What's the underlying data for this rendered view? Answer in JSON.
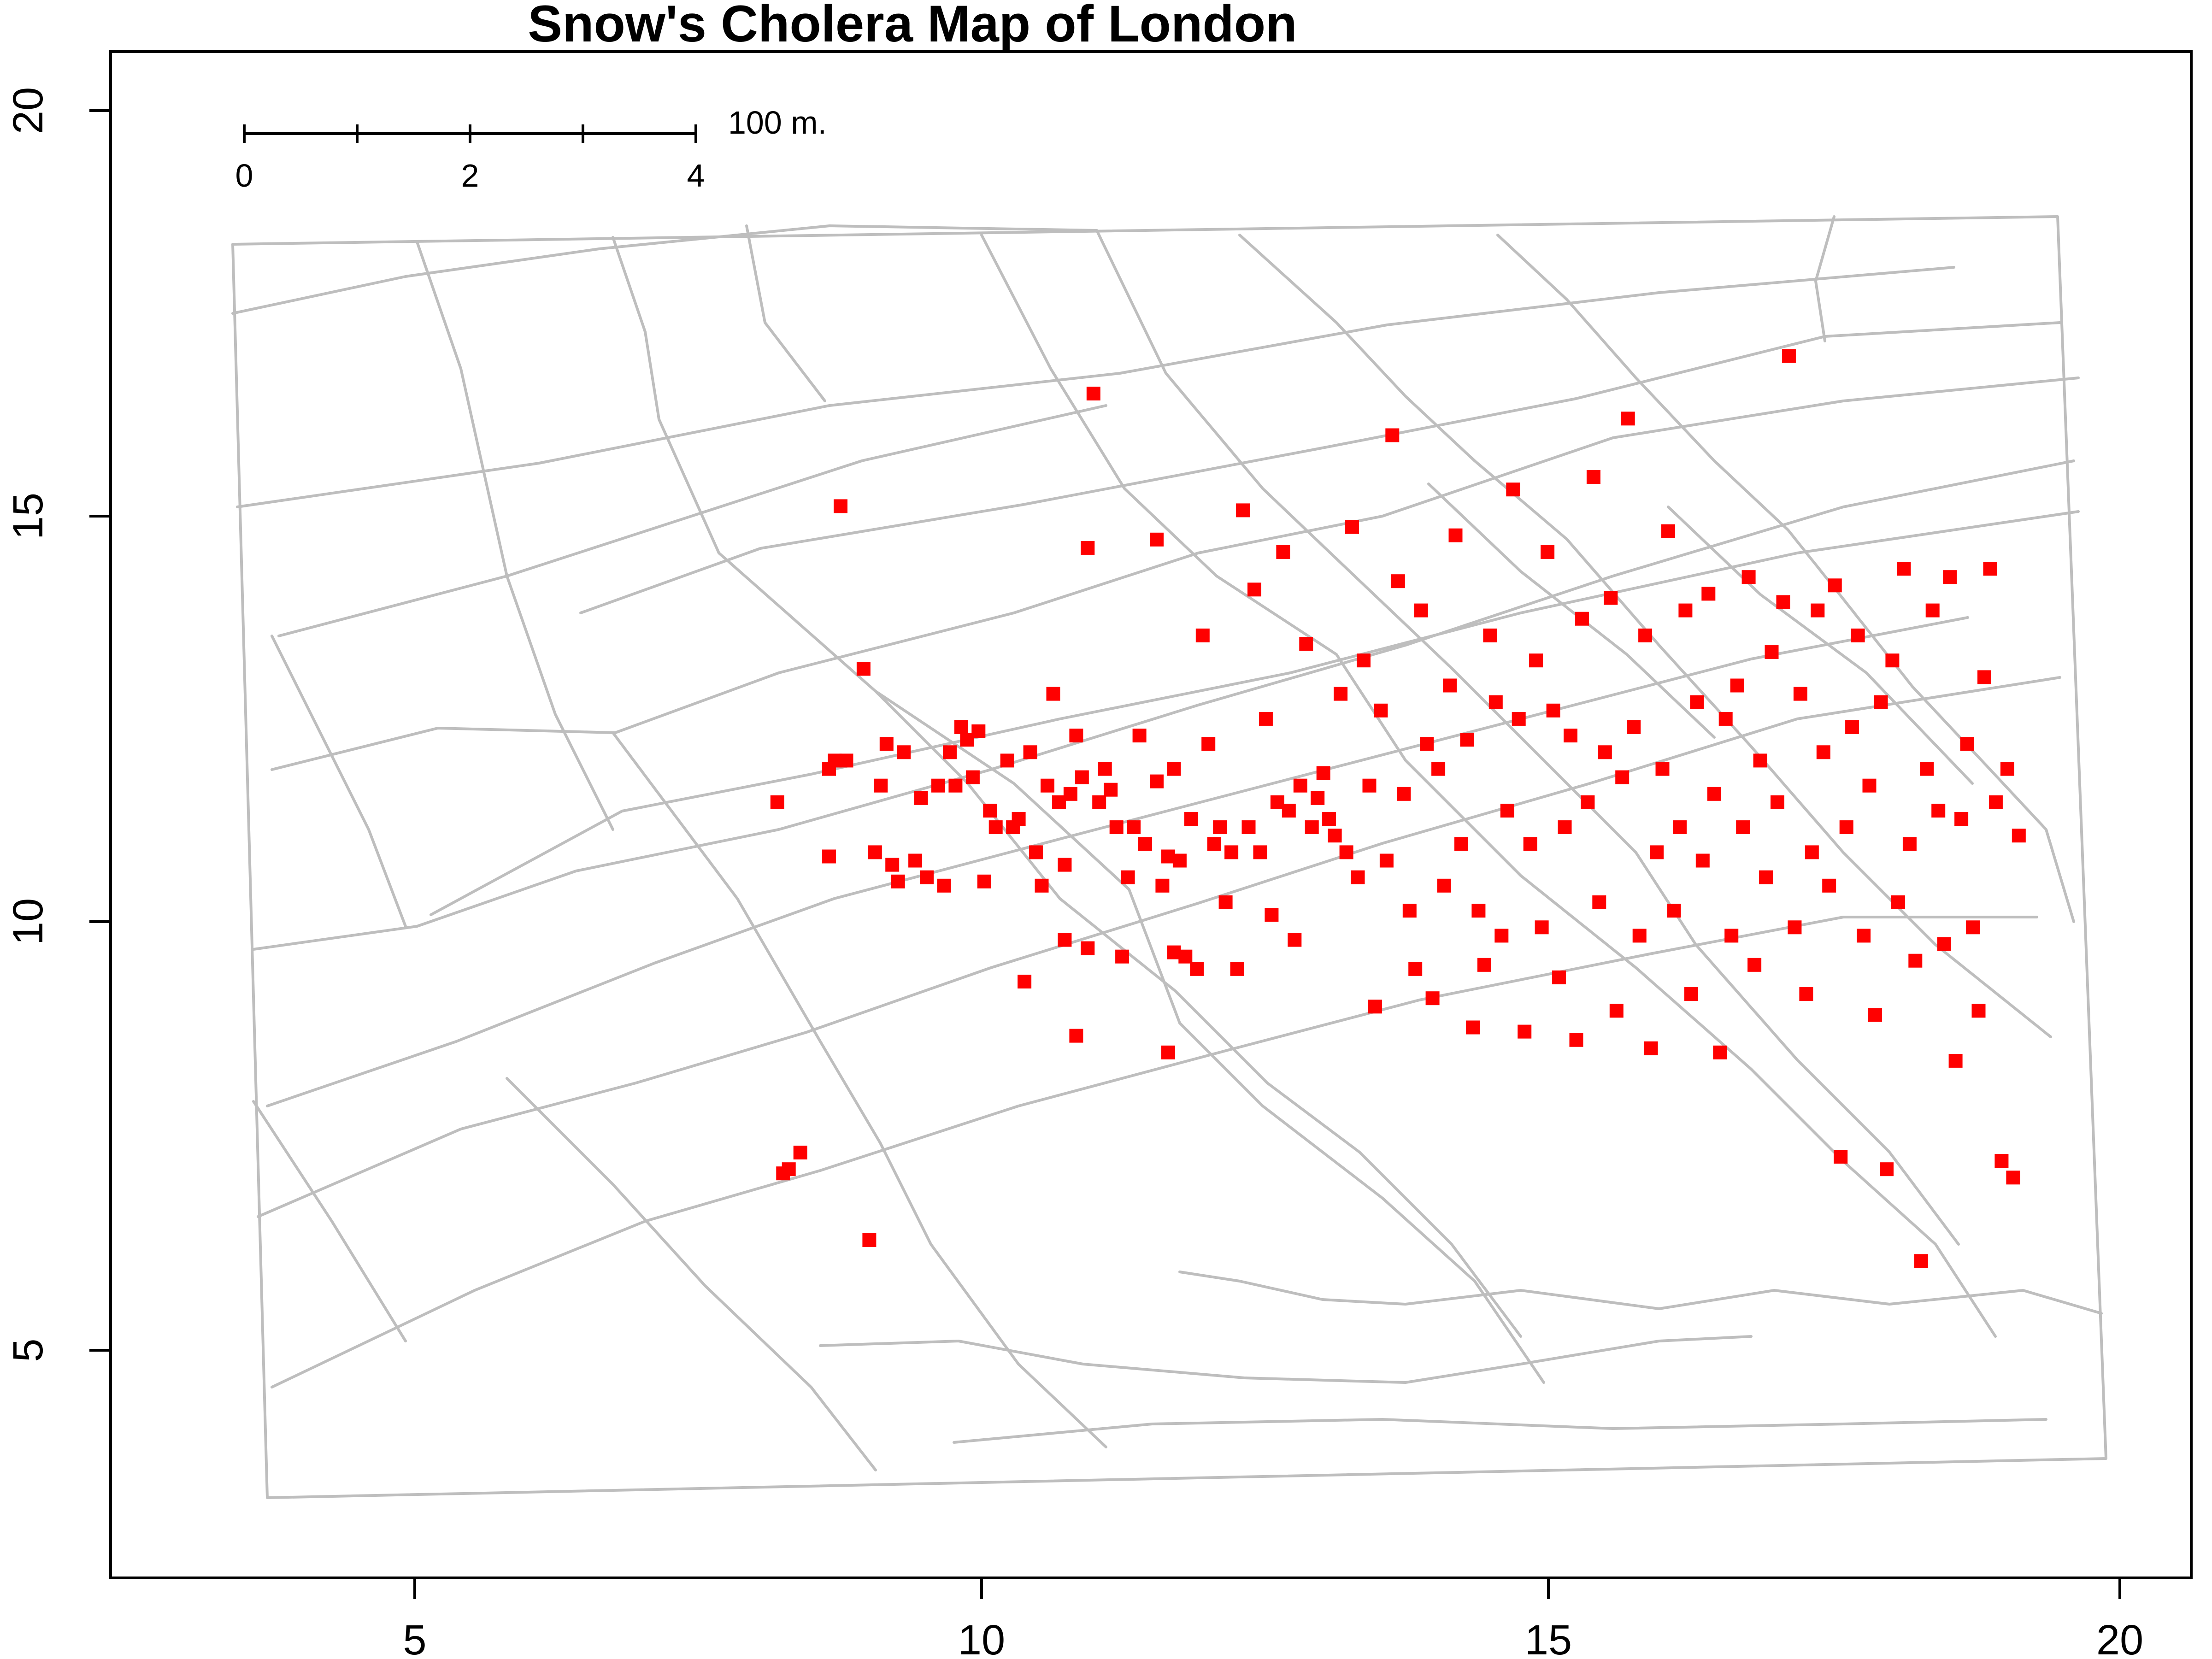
{
  "chart_data": {
    "type": "scatter",
    "title": "Snow's Cholera Map of London",
    "xlabel": "",
    "ylabel": "",
    "xlim": [
      2.5,
      20.6
    ],
    "ylim": [
      2.3,
      20.6
    ],
    "x_ticks": [
      "5",
      "10",
      "15",
      "20"
    ],
    "y_ticks": [
      "5",
      "10",
      "15",
      "20"
    ],
    "colors": {
      "deaths": "#ff0000",
      "streets": "#bebebe",
      "frame": "#000000"
    },
    "scale_bar": {
      "tick_labels": [
        "0",
        "2",
        "4"
      ],
      "label": "100 m."
    },
    "series": [
      {
        "marker": "square",
        "points": [
          [
            8.3,
            11.6
          ],
          [
            8.4,
            7.2
          ],
          [
            8.35,
            7.15
          ],
          [
            8.5,
            7.4
          ],
          [
            8.75,
            10.95
          ],
          [
            8.75,
            12.0
          ],
          [
            8.8,
            12.1
          ],
          [
            8.9,
            12.1
          ],
          [
            8.85,
            15.15
          ],
          [
            9.05,
            13.2
          ],
          [
            9.1,
            6.35
          ],
          [
            9.15,
            11.0
          ],
          [
            9.2,
            11.8
          ],
          [
            9.25,
            12.3
          ],
          [
            9.3,
            10.85
          ],
          [
            9.35,
            10.65
          ],
          [
            9.4,
            12.2
          ],
          [
            9.5,
            10.9
          ],
          [
            9.55,
            11.65
          ],
          [
            9.6,
            10.7
          ],
          [
            9.7,
            11.8
          ],
          [
            9.75,
            10.6
          ],
          [
            9.8,
            12.2
          ],
          [
            9.85,
            11.8
          ],
          [
            9.9,
            12.5
          ],
          [
            9.95,
            12.35
          ],
          [
            10.0,
            11.9
          ],
          [
            10.05,
            12.45
          ],
          [
            10.1,
            10.65
          ],
          [
            10.15,
            11.5
          ],
          [
            10.2,
            11.3
          ],
          [
            10.3,
            12.1
          ],
          [
            10.35,
            11.3
          ],
          [
            10.4,
            11.4
          ],
          [
            10.45,
            9.45
          ],
          [
            10.5,
            12.2
          ],
          [
            10.55,
            11.0
          ],
          [
            10.6,
            10.6
          ],
          [
            10.65,
            11.8
          ],
          [
            10.7,
            12.9
          ],
          [
            10.75,
            11.6
          ],
          [
            10.8,
            10.85
          ],
          [
            10.85,
            11.7
          ],
          [
            10.9,
            12.4
          ],
          [
            10.95,
            11.9
          ],
          [
            10.8,
            9.95
          ],
          [
            10.9,
            8.8
          ],
          [
            11.0,
            9.85
          ],
          [
            11.0,
            14.65
          ],
          [
            11.05,
            16.5
          ],
          [
            11.1,
            11.6
          ],
          [
            11.15,
            12.0
          ],
          [
            11.2,
            11.75
          ],
          [
            11.25,
            11.3
          ],
          [
            11.3,
            9.75
          ],
          [
            11.35,
            10.7
          ],
          [
            11.4,
            11.3
          ],
          [
            11.45,
            12.4
          ],
          [
            11.5,
            11.1
          ],
          [
            11.6,
            14.75
          ],
          [
            11.6,
            11.85
          ],
          [
            11.65,
            10.6
          ],
          [
            11.7,
            10.95
          ],
          [
            11.75,
            9.8
          ],
          [
            11.8,
            10.9
          ],
          [
            11.85,
            9.75
          ],
          [
            11.9,
            11.4
          ],
          [
            11.95,
            9.6
          ],
          [
            11.7,
            8.6
          ],
          [
            11.75,
            12.0
          ],
          [
            12.0,
            13.6
          ],
          [
            12.05,
            12.3
          ],
          [
            12.1,
            11.1
          ],
          [
            12.15,
            11.3
          ],
          [
            12.2,
            10.4
          ],
          [
            12.25,
            11.0
          ],
          [
            12.3,
            9.6
          ],
          [
            12.35,
            15.1
          ],
          [
            12.4,
            11.3
          ],
          [
            12.45,
            14.15
          ],
          [
            12.5,
            11.0
          ],
          [
            12.55,
            12.6
          ],
          [
            12.6,
            10.25
          ],
          [
            12.65,
            11.6
          ],
          [
            12.7,
            14.6
          ],
          [
            12.75,
            11.5
          ],
          [
            12.8,
            9.95
          ],
          [
            12.85,
            11.8
          ],
          [
            12.9,
            13.5
          ],
          [
            12.95,
            11.3
          ],
          [
            13.0,
            11.65
          ],
          [
            13.05,
            11.95
          ],
          [
            13.1,
            11.4
          ],
          [
            13.15,
            11.2
          ],
          [
            13.2,
            12.9
          ],
          [
            13.25,
            11.0
          ],
          [
            13.3,
            14.9
          ],
          [
            13.35,
            10.7
          ],
          [
            13.4,
            13.3
          ],
          [
            13.45,
            11.8
          ],
          [
            13.5,
            9.15
          ],
          [
            13.55,
            12.7
          ],
          [
            13.6,
            10.9
          ],
          [
            13.65,
            16.0
          ],
          [
            13.7,
            14.25
          ],
          [
            13.75,
            11.7
          ],
          [
            13.8,
            10.3
          ],
          [
            13.85,
            9.6
          ],
          [
            13.9,
            13.9
          ],
          [
            13.95,
            12.3
          ],
          [
            14.0,
            9.25
          ],
          [
            14.05,
            12.0
          ],
          [
            14.1,
            10.6
          ],
          [
            14.15,
            13.0
          ],
          [
            14.2,
            14.8
          ],
          [
            14.25,
            11.1
          ],
          [
            14.3,
            12.35
          ],
          [
            14.35,
            8.9
          ],
          [
            14.4,
            10.3
          ],
          [
            14.45,
            9.65
          ],
          [
            14.5,
            13.6
          ],
          [
            14.55,
            12.8
          ],
          [
            14.6,
            10.0
          ],
          [
            14.65,
            11.5
          ],
          [
            14.7,
            15.35
          ],
          [
            14.75,
            12.6
          ],
          [
            14.8,
            8.85
          ],
          [
            14.85,
            11.1
          ],
          [
            14.9,
            13.3
          ],
          [
            14.95,
            10.1
          ],
          [
            15.0,
            14.6
          ],
          [
            15.05,
            12.7
          ],
          [
            15.1,
            9.5
          ],
          [
            15.15,
            11.3
          ],
          [
            15.2,
            12.4
          ],
          [
            15.25,
            8.75
          ],
          [
            15.3,
            13.8
          ],
          [
            15.35,
            11.6
          ],
          [
            15.4,
            15.5
          ],
          [
            15.45,
            10.4
          ],
          [
            15.5,
            12.2
          ],
          [
            15.55,
            14.05
          ],
          [
            15.6,
            9.1
          ],
          [
            15.65,
            11.9
          ],
          [
            15.7,
            16.2
          ],
          [
            15.75,
            12.5
          ],
          [
            15.8,
            10.0
          ],
          [
            15.85,
            13.6
          ],
          [
            15.9,
            8.65
          ],
          [
            15.95,
            11.0
          ],
          [
            16.0,
            12.0
          ],
          [
            16.05,
            14.85
          ],
          [
            16.1,
            10.3
          ],
          [
            16.15,
            11.3
          ],
          [
            16.2,
            13.9
          ],
          [
            16.25,
            9.3
          ],
          [
            16.3,
            12.8
          ],
          [
            16.35,
            10.9
          ],
          [
            16.4,
            14.1
          ],
          [
            16.45,
            11.7
          ],
          [
            16.5,
            8.6
          ],
          [
            16.55,
            12.6
          ],
          [
            16.6,
            10.0
          ],
          [
            16.65,
            13.0
          ],
          [
            16.7,
            11.3
          ],
          [
            16.75,
            14.3
          ],
          [
            16.8,
            9.65
          ],
          [
            16.85,
            12.1
          ],
          [
            16.9,
            10.7
          ],
          [
            16.95,
            13.4
          ],
          [
            17.0,
            11.6
          ],
          [
            17.05,
            14.0
          ],
          [
            17.1,
            16.95
          ],
          [
            17.15,
            10.1
          ],
          [
            17.2,
            12.9
          ],
          [
            17.25,
            9.3
          ],
          [
            17.3,
            11.0
          ],
          [
            17.35,
            13.9
          ],
          [
            17.4,
            12.2
          ],
          [
            17.45,
            10.6
          ],
          [
            17.5,
            14.2
          ],
          [
            17.55,
            7.35
          ],
          [
            17.6,
            11.3
          ],
          [
            17.65,
            12.5
          ],
          [
            17.7,
            13.6
          ],
          [
            17.75,
            10.0
          ],
          [
            17.8,
            11.8
          ],
          [
            17.85,
            9.05
          ],
          [
            17.9,
            12.8
          ],
          [
            17.95,
            7.2
          ],
          [
            18.0,
            13.3
          ],
          [
            18.05,
            10.4
          ],
          [
            18.1,
            14.4
          ],
          [
            18.15,
            11.1
          ],
          [
            18.2,
            9.7
          ],
          [
            18.25,
            6.1
          ],
          [
            18.3,
            12.0
          ],
          [
            18.35,
            13.9
          ],
          [
            18.4,
            11.5
          ],
          [
            18.45,
            9.9
          ],
          [
            18.5,
            14.3
          ],
          [
            18.55,
            8.5
          ],
          [
            18.6,
            11.4
          ],
          [
            18.65,
            12.3
          ],
          [
            18.7,
            10.1
          ],
          [
            18.75,
            9.1
          ],
          [
            18.8,
            13.1
          ],
          [
            18.85,
            14.4
          ],
          [
            18.9,
            11.6
          ],
          [
            18.95,
            7.3
          ],
          [
            19.0,
            12.0
          ],
          [
            19.05,
            7.1
          ],
          [
            19.1,
            11.2
          ]
        ]
      }
    ]
  }
}
